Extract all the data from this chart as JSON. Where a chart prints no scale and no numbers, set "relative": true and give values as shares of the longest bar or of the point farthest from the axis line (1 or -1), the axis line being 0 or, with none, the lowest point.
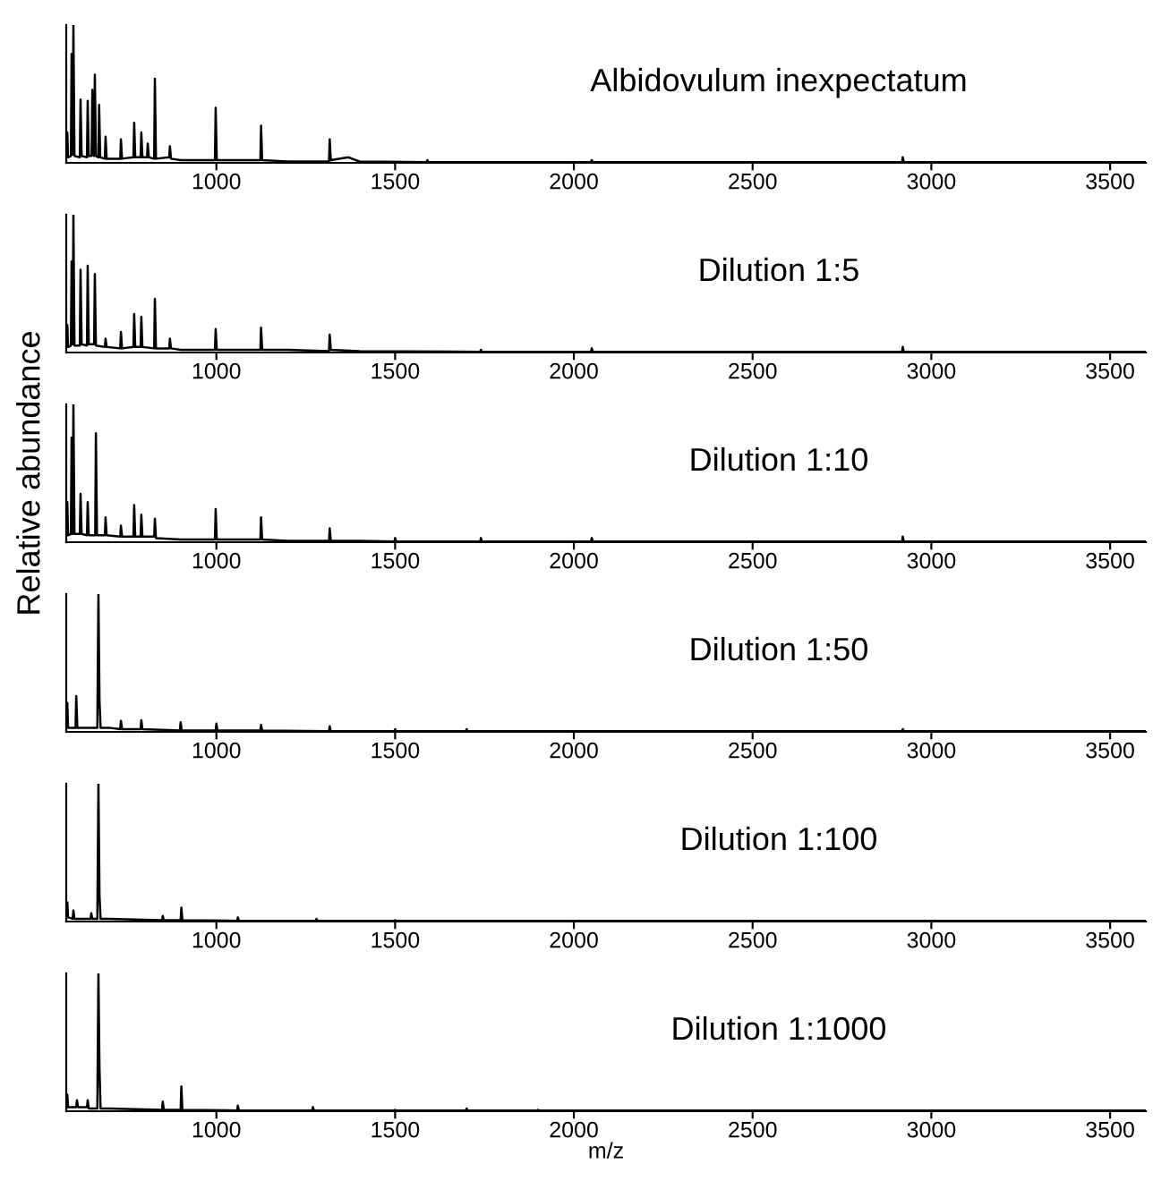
{
  "chart_data": [
    {
      "type": "line",
      "title": "Albidovulum inexpectatum",
      "relative": true,
      "xlim": [
        580,
        3600
      ],
      "xticks": [
        1000,
        1500,
        2000,
        2500,
        3000,
        3500
      ],
      "x": [
        580,
        583,
        585,
        593,
        595,
        598,
        600,
        603,
        618,
        620,
        623,
        638,
        640,
        643,
        651,
        653,
        656,
        658,
        660,
        663,
        670,
        672,
        675,
        688,
        690,
        693,
        731,
        733,
        736,
        768,
        770,
        773,
        788,
        790,
        793,
        806,
        808,
        811,
        826,
        828,
        831,
        868,
        870,
        873,
        900,
        996,
        998,
        1001,
        1123,
        1125,
        1128,
        1200,
        1315,
        1317,
        1320,
        1370,
        1400,
        1588,
        1590,
        1593,
        2048,
        2050,
        2053,
        2918,
        2920,
        2923,
        3600
      ],
      "series": [
        {
          "color": "#000000",
          "values": [
            0.05,
            0.22,
            0.04,
            0.05,
            0.79,
            0.06,
            1.0,
            0.05,
            0.04,
            0.46,
            0.05,
            0.04,
            0.45,
            0.05,
            0.05,
            0.53,
            0.06,
            0.05,
            0.64,
            0.05,
            0.04,
            0.42,
            0.04,
            0.03,
            0.19,
            0.03,
            0.03,
            0.17,
            0.03,
            0.04,
            0.29,
            0.04,
            0.04,
            0.22,
            0.04,
            0.04,
            0.14,
            0.04,
            0.03,
            0.61,
            0.03,
            0.04,
            0.12,
            0.03,
            0.02,
            0.02,
            0.4,
            0.02,
            0.02,
            0.27,
            0.02,
            0.01,
            0.01,
            0.17,
            0.02,
            0.04,
            0.01,
            0.005,
            0.02,
            0.005,
            0.005,
            0.02,
            0.005,
            0.005,
            0.04,
            0.005,
            0.005
          ]
        }
      ]
    },
    {
      "type": "line",
      "title": "Dilution 1:5",
      "relative": true,
      "xlim": [
        580,
        3600
      ],
      "xticks": [
        1000,
        1500,
        2000,
        2500,
        3000,
        3500
      ],
      "x": [
        580,
        583,
        585,
        593,
        595,
        598,
        600,
        603,
        618,
        620,
        623,
        638,
        640,
        643,
        658,
        660,
        663,
        688,
        690,
        693,
        731,
        733,
        736,
        768,
        770,
        773,
        788,
        790,
        793,
        826,
        828,
        831,
        868,
        870,
        873,
        900,
        996,
        998,
        1001,
        1123,
        1125,
        1128,
        1200,
        1315,
        1317,
        1320,
        1400,
        1738,
        1740,
        1743,
        2048,
        2050,
        2053,
        2918,
        2920,
        2923,
        3600
      ],
      "series": [
        {
          "color": "#000000",
          "values": [
            0.05,
            0.2,
            0.04,
            0.05,
            0.66,
            0.06,
            1.0,
            0.05,
            0.05,
            0.6,
            0.06,
            0.05,
            0.63,
            0.06,
            0.06,
            0.57,
            0.05,
            0.04,
            0.1,
            0.04,
            0.03,
            0.15,
            0.03,
            0.04,
            0.28,
            0.04,
            0.04,
            0.26,
            0.04,
            0.03,
            0.39,
            0.03,
            0.03,
            0.1,
            0.03,
            0.02,
            0.02,
            0.17,
            0.02,
            0.02,
            0.18,
            0.02,
            0.02,
            0.01,
            0.13,
            0.02,
            0.01,
            0.005,
            0.02,
            0.005,
            0.005,
            0.03,
            0.005,
            0.005,
            0.04,
            0.005,
            0.005
          ]
        }
      ]
    },
    {
      "type": "line",
      "title": "Dilution 1:10",
      "relative": true,
      "xlim": [
        580,
        3600
      ],
      "xticks": [
        1000,
        1500,
        2000,
        2500,
        3000,
        3500
      ],
      "ylabel": "Relative abundance",
      "x": [
        580,
        583,
        585,
        593,
        595,
        598,
        600,
        603,
        618,
        620,
        623,
        638,
        640,
        643,
        661,
        663,
        666,
        688,
        690,
        693,
        731,
        733,
        736,
        768,
        770,
        773,
        788,
        790,
        793,
        826,
        828,
        831,
        900,
        996,
        998,
        1001,
        1123,
        1125,
        1128,
        1200,
        1315,
        1317,
        1320,
        1400,
        1498,
        1500,
        1503,
        1738,
        1740,
        1743,
        2048,
        2050,
        2053,
        2918,
        2920,
        2923,
        3600
      ],
      "series": [
        {
          "color": "#000000",
          "values": [
            0.05,
            0.29,
            0.05,
            0.06,
            0.76,
            0.06,
            1.0,
            0.06,
            0.06,
            0.35,
            0.06,
            0.05,
            0.29,
            0.05,
            0.05,
            0.79,
            0.05,
            0.05,
            0.18,
            0.05,
            0.04,
            0.12,
            0.04,
            0.04,
            0.27,
            0.04,
            0.04,
            0.2,
            0.04,
            0.04,
            0.17,
            0.03,
            0.02,
            0.02,
            0.24,
            0.02,
            0.02,
            0.18,
            0.02,
            0.01,
            0.01,
            0.1,
            0.01,
            0.01,
            0.005,
            0.03,
            0.005,
            0.005,
            0.03,
            0.005,
            0.005,
            0.03,
            0.005,
            0.005,
            0.04,
            0.005,
            0.005
          ]
        }
      ]
    },
    {
      "type": "line",
      "title": "Dilution 1:50",
      "relative": true,
      "xlim": [
        580,
        3600
      ],
      "xticks": [
        1000,
        1500,
        2000,
        2500,
        3000,
        3500
      ],
      "x": [
        580,
        583,
        585,
        606,
        608,
        611,
        667,
        670,
        673,
        676,
        700,
        731,
        733,
        736,
        788,
        790,
        793,
        898,
        900,
        903,
        998,
        1000,
        1003,
        1123,
        1125,
        1128,
        1315,
        1317,
        1320,
        1498,
        1500,
        1503,
        1698,
        1700,
        1703,
        2918,
        2920,
        2923,
        3600
      ],
      "series": [
        {
          "color": "#000000",
          "values": [
            0.04,
            0.21,
            0.03,
            0.03,
            0.26,
            0.03,
            0.03,
            1.0,
            0.23,
            0.03,
            0.03,
            0.02,
            0.08,
            0.02,
            0.02,
            0.085,
            0.02,
            0.01,
            0.07,
            0.01,
            0.01,
            0.06,
            0.01,
            0.01,
            0.05,
            0.01,
            0.005,
            0.04,
            0.005,
            0.005,
            0.02,
            0.005,
            0.005,
            0.02,
            0.005,
            0.005,
            0.02,
            0.005,
            0.005
          ]
        }
      ]
    },
    {
      "type": "line",
      "title": "Dilution 1:100",
      "relative": true,
      "xlim": [
        580,
        3600
      ],
      "xticks": [
        1000,
        1500,
        2000,
        2500,
        3000,
        3500
      ],
      "x": [
        580,
        583,
        585,
        598,
        600,
        603,
        648,
        650,
        653,
        667,
        670,
        673,
        676,
        700,
        848,
        850,
        853,
        900,
        902,
        905,
        1058,
        1060,
        1063,
        1278,
        1280,
        1283,
        1498,
        1500,
        1503,
        3600
      ],
      "series": [
        {
          "color": "#000000",
          "values": [
            0.03,
            0.14,
            0.03,
            0.02,
            0.08,
            0.02,
            0.02,
            0.06,
            0.02,
            0.02,
            1.0,
            0.19,
            0.02,
            0.02,
            0.01,
            0.04,
            0.01,
            0.01,
            0.1,
            0.01,
            0.005,
            0.03,
            0.005,
            0.005,
            0.02,
            0.005,
            0.005,
            0.01,
            0.005,
            0.005
          ]
        }
      ]
    },
    {
      "type": "line",
      "title": "Dilution 1:1000",
      "relative": true,
      "xlim": [
        580,
        3600
      ],
      "xticks": [
        1000,
        1500,
        2000,
        2500,
        3000,
        3500
      ],
      "xlabel": "m/z",
      "x": [
        580,
        583,
        585,
        608,
        610,
        613,
        638,
        640,
        643,
        667,
        670,
        673,
        676,
        700,
        848,
        850,
        853,
        900,
        902,
        905,
        1058,
        1060,
        1063,
        1268,
        1270,
        1273,
        1498,
        1500,
        1503,
        1698,
        1700,
        1703,
        1898,
        1900,
        1903,
        3600
      ],
      "series": [
        {
          "color": "#000000",
          "values": [
            0.03,
            0.12,
            0.03,
            0.03,
            0.08,
            0.03,
            0.03,
            0.08,
            0.02,
            0.02,
            1.0,
            0.31,
            0.02,
            0.02,
            0.01,
            0.07,
            0.01,
            0.01,
            0.18,
            0.01,
            0.005,
            0.04,
            0.005,
            0.005,
            0.03,
            0.005,
            0.005,
            0.01,
            0.005,
            0.005,
            0.02,
            0.005,
            0.005,
            0.01,
            0.005,
            0.005
          ]
        }
      ]
    }
  ]
}
